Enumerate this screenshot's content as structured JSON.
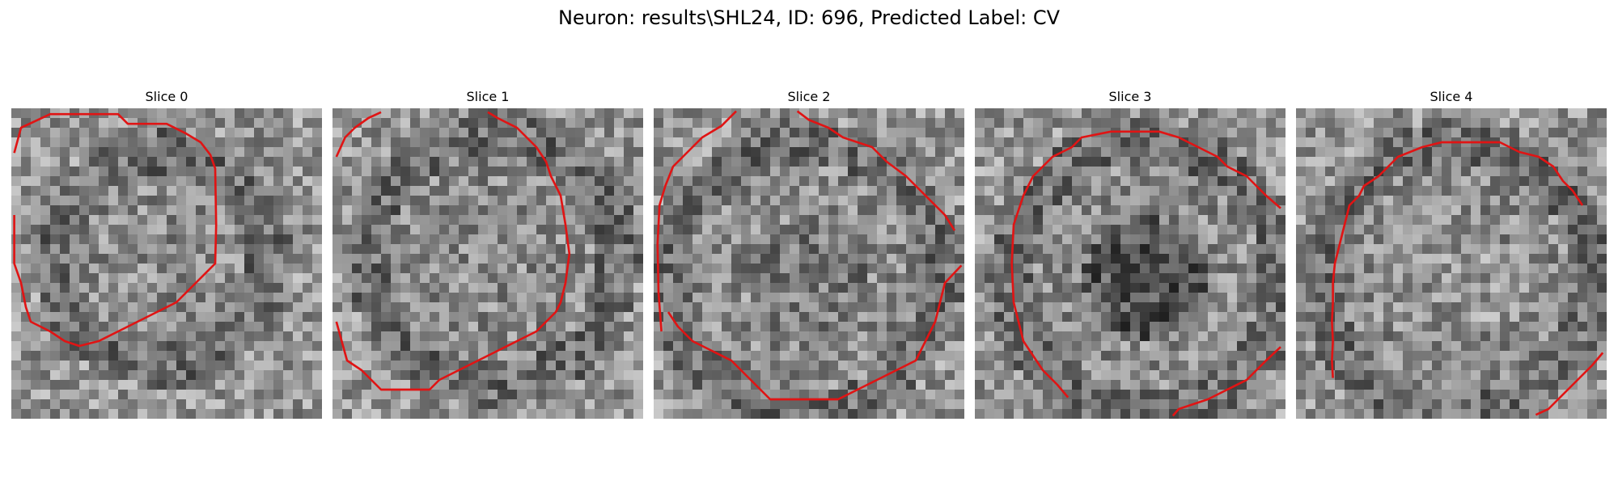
{
  "figure": {
    "title": "Neuron: results\\SHL24, ID: 696, Predicted Label: CV"
  },
  "panels": [
    {
      "title": "Slice 0"
    },
    {
      "title": "Slice 1"
    },
    {
      "title": "Slice 2"
    },
    {
      "title": "Slice 3"
    },
    {
      "title": "Slice 4"
    }
  ],
  "colors": {
    "contour": "#e01414",
    "background": "#ffffff"
  }
}
